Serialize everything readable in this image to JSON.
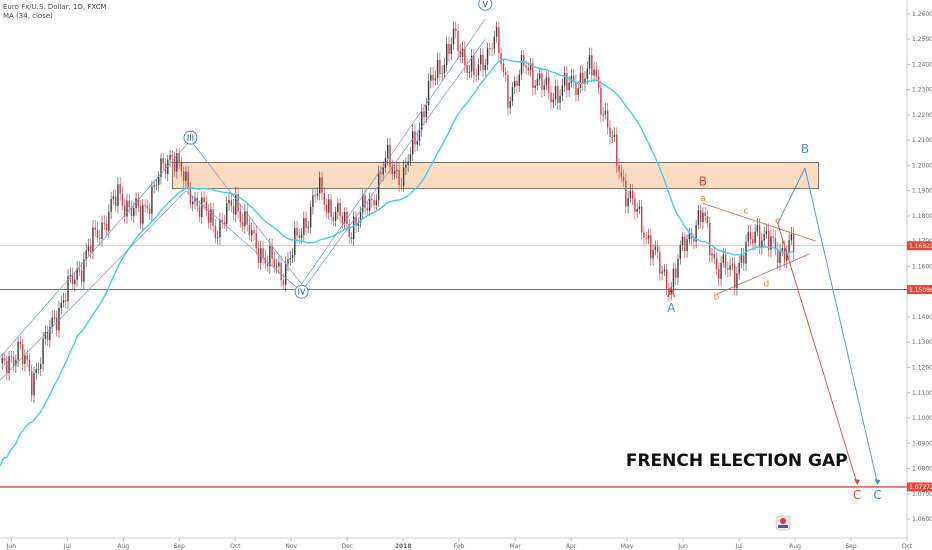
{
  "header": {
    "symbol": "Euro Fx/U.S. Dollar, 1D, FXCM",
    "indicator": "MA (34, close)"
  },
  "colors": {
    "bull": "#3a3a3a",
    "bear": "#d6384a",
    "ma": "#3fd0ea",
    "red_wave": "#d24a3c",
    "blue_wave": "#4d8cd9",
    "orange_wave": "#e07f20",
    "zone_fill": "#fbdcc1",
    "price_tag": "#e24a3a"
  },
  "chart_data": {
    "type": "candlestick",
    "title": "",
    "x_ticks": [
      "Jun",
      "Jul",
      "Aug",
      "Sep",
      "Oct",
      "Nov",
      "Dec",
      "2018",
      "Feb",
      "Mar",
      "Apr",
      "May",
      "Jun",
      "Jul",
      "Aug",
      "Sep",
      "Oct"
    ],
    "y_ticks": [
      "1.26000",
      "1.25000",
      "1.24000",
      "1.23000",
      "1.22000",
      "1.21000",
      "1.20000",
      "1.19000",
      "1.18000",
      "1.17000",
      "1.16000",
      "1.15000",
      "1.14000",
      "1.13000",
      "1.12000",
      "1.11000",
      "1.10000",
      "1.09000",
      "1.08000",
      "1.07000",
      "1.06000"
    ],
    "ylim": [
      1.0525,
      1.2655
    ],
    "price_tags": [
      "1.16822",
      "1.15086",
      "1.07272"
    ],
    "horizontal_lines": [
      {
        "value": 1.16822,
        "label": "1.16822",
        "role": "current price"
      },
      {
        "value": 1.15086,
        "label": "1.15086",
        "role": "support"
      },
      {
        "value": 1.07272,
        "label": "1.07272",
        "role": "gap target"
      }
    ],
    "resistance_zone": {
      "from": 1.1908,
      "to": 1.2012
    },
    "price_path": [
      {
        "t": 0,
        "v": 1.118
      },
      {
        "t": 8,
        "v": 1.128
      },
      {
        "t": 14,
        "v": 1.115
      },
      {
        "t": 25,
        "v": 1.142
      },
      {
        "t": 40,
        "v": 1.168
      },
      {
        "t": 52,
        "v": 1.188
      },
      {
        "t": 62,
        "v": 1.18
      },
      {
        "t": 70,
        "v": 1.195
      },
      {
        "t": 76,
        "v": 1.206
      },
      {
        "t": 82,
        "v": 1.192
      },
      {
        "t": 88,
        "v": 1.184
      },
      {
        "t": 96,
        "v": 1.175
      },
      {
        "t": 104,
        "v": 1.186
      },
      {
        "t": 112,
        "v": 1.169
      },
      {
        "t": 124,
        "v": 1.157
      },
      {
        "t": 132,
        "v": 1.172
      },
      {
        "t": 140,
        "v": 1.19
      },
      {
        "t": 146,
        "v": 1.183
      },
      {
        "t": 154,
        "v": 1.175
      },
      {
        "t": 164,
        "v": 1.186
      },
      {
        "t": 170,
        "v": 1.202
      },
      {
        "t": 178,
        "v": 1.195
      },
      {
        "t": 190,
        "v": 1.232
      },
      {
        "t": 200,
        "v": 1.25
      },
      {
        "t": 210,
        "v": 1.235
      },
      {
        "t": 218,
        "v": 1.252
      },
      {
        "t": 224,
        "v": 1.228
      },
      {
        "t": 232,
        "v": 1.24
      },
      {
        "t": 242,
        "v": 1.228
      },
      {
        "t": 252,
        "v": 1.232
      },
      {
        "t": 262,
        "v": 1.238
      },
      {
        "t": 268,
        "v": 1.215
      },
      {
        "t": 276,
        "v": 1.19
      },
      {
        "t": 284,
        "v": 1.175
      },
      {
        "t": 292,
        "v": 1.157
      },
      {
        "t": 296,
        "v": 1.153
      },
      {
        "t": 302,
        "v": 1.17
      },
      {
        "t": 310,
        "v": 1.18
      },
      {
        "t": 316,
        "v": 1.16
      },
      {
        "t": 324,
        "v": 1.158
      },
      {
        "t": 334,
        "v": 1.175
      },
      {
        "t": 342,
        "v": 1.166
      },
      {
        "t": 350,
        "v": 1.168
      }
    ],
    "x_range": [
      0,
      400
    ],
    "ma_period": 34,
    "wave_labels": [
      {
        "text": "III",
        "t": 84,
        "v": 1.211,
        "color": "blue",
        "circled": true
      },
      {
        "text": "IV",
        "t": 133,
        "v": 1.15,
        "color": "blue",
        "circled": true
      },
      {
        "text": "V",
        "t": 214,
        "v": 1.264,
        "color": "blue",
        "circled": true
      },
      {
        "text": "A",
        "t": 296,
        "v": 1.148,
        "color": "red"
      },
      {
        "text": "A",
        "t": 296,
        "v": 1.142,
        "color": "blue"
      },
      {
        "text": "B",
        "t": 310,
        "v": 1.192,
        "color": "red"
      },
      {
        "text": "B",
        "t": 355,
        "v": 1.205,
        "color": "blue"
      },
      {
        "text": "C",
        "t": 378,
        "v": 1.068,
        "color": "red"
      },
      {
        "text": "C",
        "t": 387,
        "v": 1.068,
        "color": "blue"
      },
      {
        "text": "a",
        "t": 310,
        "v": 1.186,
        "color": "orange"
      },
      {
        "text": "b",
        "t": 316,
        "v": 1.147,
        "color": "orange"
      },
      {
        "text": "c",
        "t": 329,
        "v": 1.181,
        "color": "orange"
      },
      {
        "text": "d",
        "t": 338,
        "v": 1.152,
        "color": "orange"
      },
      {
        "text": "e",
        "t": 343,
        "v": 1.177,
        "color": "orange"
      }
    ],
    "annotation": "FRENCH ELECTION GAP"
  }
}
